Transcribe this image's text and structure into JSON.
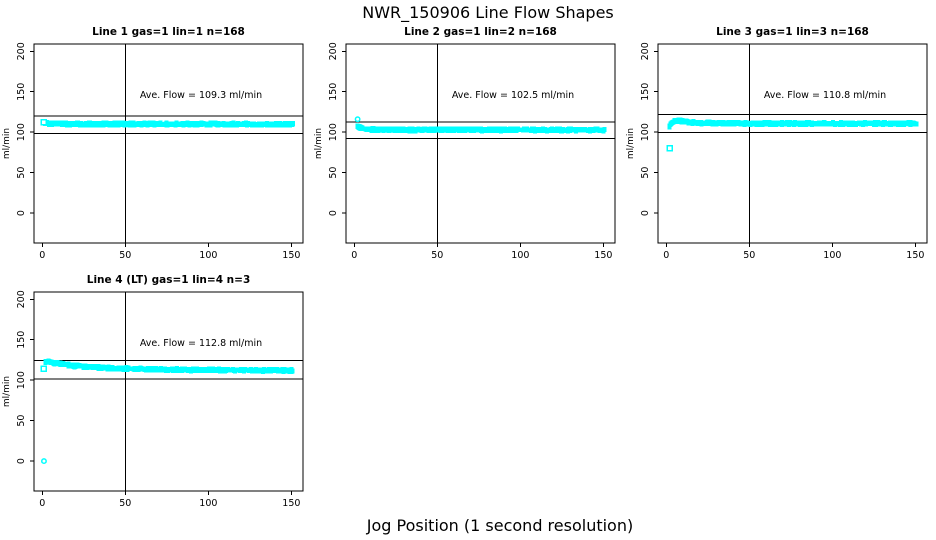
{
  "figure": {
    "title": "NWR_150906  Line Flow Shapes",
    "xlabel": "Jog Position (1 second resolution)",
    "background": "#ffffff",
    "point_color": "#00ffff",
    "axis_color": "#000000"
  },
  "chart_data": [
    {
      "type": "scatter",
      "title": "Line 1 gas=1 lin=1 n=168",
      "ylabel": "ml/min",
      "ave_flow_ml_min": 109.3,
      "ave_label": "Ave. Flow =  109.3  ml/min",
      "n_traces": 168,
      "xlim": [
        -5,
        157
      ],
      "ylim": [
        -37,
        209
      ],
      "xticks": [
        0,
        50,
        100,
        150
      ],
      "yticks": [
        0,
        50,
        100,
        150,
        200
      ],
      "vline_x": 50,
      "hlines": [
        120.2,
        98.4
      ],
      "band": {
        "x_start": 1,
        "x_end": 151,
        "halfwidth": 2.2,
        "profile": [
          [
            1,
            111.5
          ],
          [
            2,
            111
          ],
          [
            5,
            110.5
          ],
          [
            15,
            110.2
          ],
          [
            60,
            110
          ],
          [
            151,
            109.8
          ]
        ]
      },
      "markers": [
        {
          "x": 1,
          "y": 112.5,
          "shape": "square"
        }
      ]
    },
    {
      "type": "scatter",
      "title": "Line 2 gas=1 lin=2 n=168",
      "ylabel": "ml/min",
      "ave_flow_ml_min": 102.5,
      "ave_label": "Ave. Flow =  102.5  ml/min",
      "n_traces": 168,
      "xlim": [
        -5,
        157
      ],
      "ylim": [
        -37,
        209
      ],
      "xticks": [
        0,
        50,
        100,
        150
      ],
      "yticks": [
        0,
        50,
        100,
        150,
        200
      ],
      "vline_x": 50,
      "hlines": [
        112.8,
        92.3
      ],
      "band": {
        "x_start": 2,
        "x_end": 151,
        "halfwidth": 2.2,
        "profile": [
          [
            2,
            107.5
          ],
          [
            3,
            106
          ],
          [
            5,
            104.5
          ],
          [
            8,
            103.5
          ],
          [
            15,
            103
          ],
          [
            60,
            103
          ],
          [
            151,
            102.8
          ]
        ]
      },
      "markers": [
        {
          "x": 2,
          "y": 116,
          "shape": "circle"
        }
      ]
    },
    {
      "type": "scatter",
      "title": "Line 3 gas=1 lin=3 n=168",
      "ylabel": "ml/min",
      "ave_flow_ml_min": 110.8,
      "ave_label": "Ave. Flow =  110.8  ml/min",
      "n_traces": 168,
      "xlim": [
        -5,
        157
      ],
      "ylim": [
        -37,
        209
      ],
      "xticks": [
        0,
        50,
        100,
        150
      ],
      "yticks": [
        0,
        50,
        100,
        150,
        200
      ],
      "vline_x": 50,
      "hlines": [
        121.9,
        99.7
      ],
      "band": {
        "x_start": 2,
        "x_end": 151,
        "halfwidth": 2.3,
        "profile": [
          [
            2,
            107.5
          ],
          [
            3,
            110
          ],
          [
            5,
            113.5
          ],
          [
            7,
            114.5
          ],
          [
            10,
            113.5
          ],
          [
            15,
            112
          ],
          [
            22,
            111.2
          ],
          [
            40,
            110.8
          ],
          [
            151,
            110.6
          ]
        ]
      },
      "markers": [
        {
          "x": 2,
          "y": 80,
          "shape": "square"
        }
      ]
    },
    {
      "type": "scatter",
      "title": "Line 4 (LT) gas=1 lin=4 n=3",
      "ylabel": "ml/min",
      "ave_flow_ml_min": 112.8,
      "ave_label": "Ave. Flow =  112.8  ml/min",
      "n_traces": 3,
      "xlim": [
        -5,
        157
      ],
      "ylim": [
        -37,
        209
      ],
      "xticks": [
        0,
        50,
        100,
        150
      ],
      "yticks": [
        0,
        50,
        100,
        150,
        200
      ],
      "vline_x": 50,
      "hlines": [
        124.1,
        101.5
      ],
      "band": {
        "x_start": 2,
        "x_end": 151,
        "halfwidth": 2.0,
        "profile": [
          [
            2,
            123
          ],
          [
            5,
            122
          ],
          [
            10,
            120.5
          ],
          [
            18,
            118
          ],
          [
            28,
            116.3
          ],
          [
            40,
            115
          ],
          [
            55,
            114
          ],
          [
            75,
            113.2
          ],
          [
            110,
            112.4
          ],
          [
            151,
            112
          ]
        ]
      },
      "markers": [
        {
          "x": 1,
          "y": 114,
          "shape": "square"
        },
        {
          "x": 1,
          "y": 0,
          "shape": "circle"
        }
      ]
    }
  ]
}
